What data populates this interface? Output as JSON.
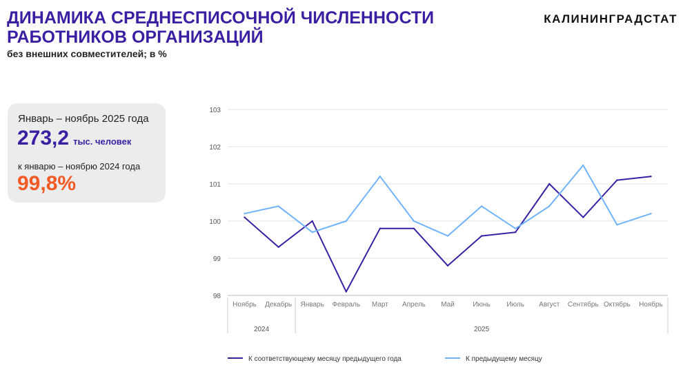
{
  "header": {
    "title": "ДИНАМИКА СРЕДНЕСПИСОЧНОЙ ЧИСЛЕННОСТИ РАБОТНИКОВ ОРГАНИЗАЦИЙ",
    "subtitle": "без внешних совместителей; в %",
    "brand": "КАЛИНИНГРАДСТАТ"
  },
  "card": {
    "period": "Январь – ноябрь 2025 года",
    "value": "273,2",
    "unit": "тыс. человек",
    "compare_label": "к январю – ноябрю 2024 года",
    "compare_value": "99,8%"
  },
  "colors": {
    "dark": "#3b1fa3",
    "light": "#6fb3ff",
    "accent": "#f15a24"
  },
  "chart_data": {
    "type": "line",
    "categories": [
      "Ноябрь",
      "Декабрь",
      "Январь",
      "Февраль",
      "Март",
      "Апрель",
      "Май",
      "Июнь",
      "Июль",
      "Август",
      "Сентябрь",
      "Октябрь",
      "Ноябрь"
    ],
    "years": [
      {
        "label": "2024",
        "span": 2
      },
      {
        "label": "2025",
        "span": 11
      }
    ],
    "ylim": [
      98,
      103
    ],
    "yticks": [
      "98",
      "99",
      "100",
      "101",
      "102",
      "103"
    ],
    "series": [
      {
        "name": "К соответствующему месяцу предыдущего года",
        "color": "#3b1fa3",
        "values": [
          100.1,
          99.3,
          100.0,
          98.1,
          99.8,
          99.8,
          98.8,
          99.6,
          99.7,
          101.0,
          100.1,
          101.1,
          101.2
        ]
      },
      {
        "name": "К предыдущему месяцу",
        "color": "#6fb3ff",
        "values": [
          100.2,
          100.4,
          99.7,
          100.0,
          101.2,
          100.0,
          99.6,
          100.4,
          99.8,
          100.4,
          101.5,
          99.9,
          100.2
        ]
      }
    ],
    "legend": "bottom",
    "grid": true
  }
}
